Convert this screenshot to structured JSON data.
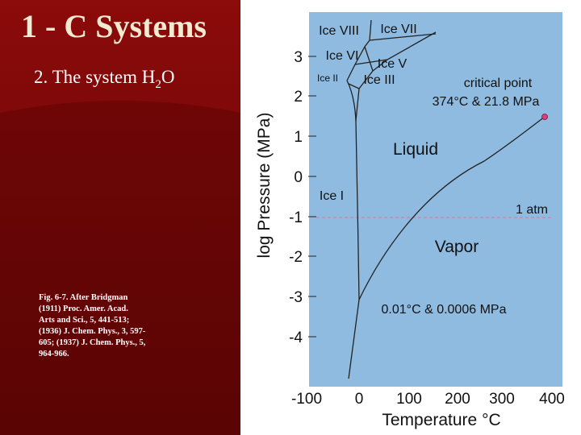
{
  "slide": {
    "title": "1 - C Systems",
    "subtitle": {
      "prefix": "2. The system H",
      "sub": "2",
      "suffix": "O"
    },
    "caption": [
      "Fig. 6-7. After Bridgman",
      "(1911) Proc. Amer. Acad.",
      "Arts and Sci., 5, 441-513;",
      "(1936) J. Chem. Phys., 3, 597-",
      "605; (1937) J. Chem. Phys., 5,",
      "964-966."
    ]
  },
  "diagram": {
    "y_axis_label": "log Pressure (MPa)",
    "x_axis_label": "Temperature °C",
    "y_tick_labels": [
      "3",
      "2",
      "1",
      "0",
      "-1",
      "-2",
      "-3",
      "-4"
    ],
    "x_tick_labels": [
      "-100",
      "0",
      "100",
      "200",
      "300",
      "400"
    ],
    "region_labels": [
      "Ice VIII",
      "Ice VII",
      "Ice VI",
      "Ice V",
      "Ice II",
      "Ice III",
      "Liquid",
      "Ice I",
      "Vapor"
    ],
    "annotations": [
      "critical point",
      "374°C  & 21.8 MPa",
      "1 atm",
      "0.01°C  & 0.0006 MPa"
    ]
  }
}
